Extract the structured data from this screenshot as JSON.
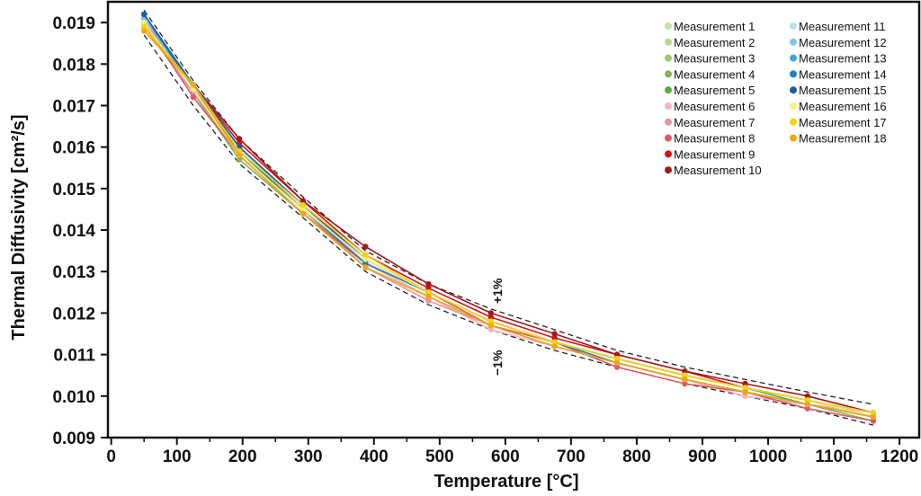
{
  "chart_data": {
    "type": "line",
    "title": "",
    "xlabel": "Temperature [°C]",
    "ylabel": "Thermal Diffusivity [cm²/s]",
    "xlim": [
      -5,
      1230
    ],
    "ylim": [
      0.009,
      0.0195
    ],
    "xticks": [
      0,
      100,
      200,
      300,
      400,
      500,
      600,
      700,
      800,
      900,
      1000,
      1100,
      1200
    ],
    "xtick_labels": [
      "0",
      "100",
      "200",
      "300",
      "400",
      "500",
      "600",
      "700",
      "800",
      "900",
      "1000",
      "1100",
      "1200"
    ],
    "yticks": [
      0.009,
      0.01,
      0.011,
      0.012,
      0.013,
      0.014,
      0.015,
      0.016,
      0.017,
      0.018,
      0.019
    ],
    "ytick_labels": [
      "0.009",
      "0.010",
      "0.011",
      "0.012",
      "0.013",
      "0.014",
      "0.015",
      "0.016",
      "0.017",
      "0.018",
      "0.019"
    ],
    "x": [
      50,
      125,
      195,
      292,
      387,
      483,
      578,
      675,
      770,
      873,
      965,
      1060,
      1160
    ],
    "band": {
      "upper_label": "+1%",
      "lower_label": "−1%",
      "upper": [
        0.0193,
        0.0176,
        0.0162,
        0.0148,
        0.0135,
        0.0127,
        0.0121,
        0.0116,
        0.0111,
        0.0107,
        0.0104,
        0.0101,
        0.0098
      ],
      "lower": [
        0.0187,
        0.017,
        0.0156,
        0.0143,
        0.013,
        0.0122,
        0.0116,
        0.0111,
        0.0107,
        0.0103,
        0.01,
        0.0097,
        0.0093
      ]
    },
    "series": [
      {
        "name": "Measurement 1",
        "color": "#c8dfa5",
        "values": [
          0.019,
          0.0174,
          0.016,
          0.0145,
          0.0131,
          0.0124,
          0.0117,
          0.0113,
          0.0109,
          0.0105,
          0.0102,
          0.0099,
          0.0096
        ]
      },
      {
        "name": "Measurement 2",
        "color": "#b5d98a",
        "values": [
          0.0191,
          0.0174,
          0.0159,
          0.0145,
          0.0132,
          0.0125,
          0.0118,
          0.0113,
          0.0109,
          0.0105,
          0.0102,
          0.0099,
          0.0095
        ]
      },
      {
        "name": "Measurement 3",
        "color": "#9cc96b",
        "values": [
          0.019,
          0.0173,
          0.0158,
          0.0144,
          0.0132,
          0.0124,
          0.0117,
          0.0112,
          0.0108,
          0.0104,
          0.0101,
          0.0098,
          0.0095
        ]
      },
      {
        "name": "Measurement 4",
        "color": "#7fb84f",
        "values": [
          0.0189,
          0.0173,
          0.0157,
          0.0144,
          0.0131,
          0.0124,
          0.0117,
          0.0112,
          0.0108,
          0.0104,
          0.0101,
          0.0098,
          0.0094
        ]
      },
      {
        "name": "Measurement 5",
        "color": "#52b03a",
        "values": [
          0.0191,
          0.0174,
          0.0158,
          0.0145,
          0.0133,
          0.0125,
          0.0118,
          0.0113,
          0.0109,
          0.0105,
          0.0102,
          0.0098,
          0.0095
        ]
      },
      {
        "name": "Measurement 6",
        "color": "#f2b6c8",
        "values": [
          0.0189,
          0.0173,
          0.016,
          0.0146,
          0.0132,
          0.0124,
          0.0116,
          0.0112,
          0.0108,
          0.0104,
          0.01,
          0.0098,
          0.0096
        ]
      },
      {
        "name": "Measurement 7",
        "color": "#e8949c",
        "values": [
          0.0189,
          0.0173,
          0.0159,
          0.0145,
          0.0131,
          0.0123,
          0.0117,
          0.0112,
          0.0108,
          0.0104,
          0.0101,
          0.0098,
          0.0095
        ]
      },
      {
        "name": "Measurement 8",
        "color": "#dc5a6a",
        "values": [
          0.019,
          0.0172,
          0.0158,
          0.0144,
          0.0132,
          0.0125,
          0.0117,
          0.0113,
          0.0107,
          0.0103,
          0.0101,
          0.0097,
          0.0094
        ]
      },
      {
        "name": "Measurement 9",
        "color": "#d4101c",
        "values": [
          0.019,
          0.0175,
          0.0161,
          0.0147,
          0.0134,
          0.0126,
          0.0119,
          0.0114,
          0.011,
          0.0106,
          0.0102,
          0.0099,
          0.0095
        ]
      },
      {
        "name": "Measurement 10",
        "color": "#a5171d",
        "values": [
          0.0191,
          0.0175,
          0.0162,
          0.0147,
          0.0136,
          0.0127,
          0.012,
          0.0115,
          0.011,
          0.0106,
          0.0103,
          0.01,
          0.0096
        ]
      },
      {
        "name": "Measurement 11",
        "color": "#b5dff2",
        "values": [
          0.0191,
          0.0174,
          0.016,
          0.0146,
          0.0133,
          0.0125,
          0.0118,
          0.0113,
          0.0109,
          0.0105,
          0.0102,
          0.0099,
          0.0096
        ]
      },
      {
        "name": "Measurement 12",
        "color": "#7fc4e6",
        "values": [
          0.0191,
          0.0174,
          0.0159,
          0.0146,
          0.0133,
          0.0125,
          0.0118,
          0.0113,
          0.0109,
          0.0105,
          0.0102,
          0.0099,
          0.0095
        ]
      },
      {
        "name": "Measurement 13",
        "color": "#3fa7d6",
        "values": [
          0.0192,
          0.0175,
          0.016,
          0.0146,
          0.0133,
          0.0125,
          0.0118,
          0.0113,
          0.0109,
          0.0105,
          0.0102,
          0.0099,
          0.0095
        ]
      },
      {
        "name": "Measurement 14",
        "color": "#1f7fc4",
        "values": [
          0.0192,
          0.0174,
          0.0159,
          0.0145,
          0.0132,
          0.0125,
          0.0118,
          0.0113,
          0.0108,
          0.0104,
          0.0101,
          0.0098,
          0.0095
        ]
      },
      {
        "name": "Measurement 15",
        "color": "#1a5fa6",
        "values": [
          0.0192,
          0.0175,
          0.016,
          0.0146,
          0.0133,
          0.0125,
          0.0118,
          0.0113,
          0.0109,
          0.0105,
          0.0102,
          0.0099,
          0.0095
        ]
      },
      {
        "name": "Measurement 16",
        "color": "#fff07a",
        "values": [
          0.019,
          0.0174,
          0.0158,
          0.0145,
          0.0133,
          0.0125,
          0.0118,
          0.0113,
          0.0109,
          0.0105,
          0.0102,
          0.0099,
          0.0095
        ]
      },
      {
        "name": "Measurement 17",
        "color": "#f5d40a",
        "values": [
          0.0189,
          0.0175,
          0.0159,
          0.0146,
          0.0134,
          0.0125,
          0.0118,
          0.0113,
          0.0109,
          0.0105,
          0.0102,
          0.0099,
          0.0096
        ]
      },
      {
        "name": "Measurement 18",
        "color": "#f2a516",
        "values": [
          0.0188,
          0.0175,
          0.0158,
          0.0144,
          0.0131,
          0.0124,
          0.0117,
          0.0112,
          0.0108,
          0.0104,
          0.0101,
          0.0098,
          0.0095
        ]
      }
    ]
  }
}
